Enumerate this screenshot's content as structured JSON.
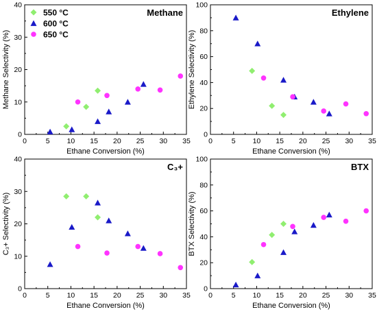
{
  "legend": [
    {
      "label": "550 °C",
      "color": "#90ee70",
      "marker": "diamond"
    },
    {
      "label": "600 °C",
      "color": "#1a1ac8",
      "marker": "triangle"
    },
    {
      "label": "650 °C",
      "color": "#ff33ff",
      "marker": "circle"
    }
  ],
  "chart_data": [
    {
      "type": "scatter",
      "title": "Methane",
      "xlabel": "Ethane Conversion (%)",
      "ylabel": "Methane Selectivity (%)",
      "xlim": [
        0,
        35
      ],
      "ylim": [
        0,
        40
      ],
      "xticks": [
        0,
        5,
        10,
        15,
        20,
        25,
        30,
        35
      ],
      "yticks": [
        0,
        10,
        20,
        30,
        40
      ],
      "legend_position": "top-left",
      "series": [
        {
          "name": "550 °C",
          "points": [
            [
              9.0,
              2.5
            ],
            [
              13.3,
              8.5
            ],
            [
              15.8,
              13.5
            ]
          ]
        },
        {
          "name": "600 °C",
          "points": [
            [
              5.5,
              0.8
            ],
            [
              10.2,
              1.5
            ],
            [
              15.8,
              4.0
            ],
            [
              18.2,
              7.0
            ],
            [
              22.3,
              10.0
            ],
            [
              25.7,
              15.5
            ]
          ]
        },
        {
          "name": "650 °C",
          "points": [
            [
              11.5,
              10.0
            ],
            [
              17.8,
              12.0
            ],
            [
              24.5,
              14.0
            ],
            [
              29.3,
              13.7
            ],
            [
              33.7,
              18.0
            ]
          ]
        }
      ]
    },
    {
      "type": "scatter",
      "title": "Ethylene",
      "xlabel": "Ethane Conversion (%)",
      "ylabel": "Ethylene Selectivity (%)",
      "xlim": [
        0,
        35
      ],
      "ylim": [
        0,
        100
      ],
      "xticks": [
        0,
        5,
        10,
        15,
        20,
        25,
        30,
        35
      ],
      "yticks": [
        0,
        20,
        40,
        60,
        80,
        100
      ],
      "series": [
        {
          "name": "550 °C",
          "points": [
            [
              9.0,
              49.0
            ],
            [
              13.3,
              22.0
            ],
            [
              15.8,
              15.0
            ]
          ]
        },
        {
          "name": "600 °C",
          "points": [
            [
              5.5,
              90.0
            ],
            [
              10.2,
              70.0
            ],
            [
              15.8,
              42.0
            ],
            [
              18.2,
              29.0
            ],
            [
              22.3,
              25.0
            ],
            [
              25.7,
              16.0
            ]
          ]
        },
        {
          "name": "650 °C",
          "points": [
            [
              11.5,
              43.5
            ],
            [
              17.8,
              29.0
            ],
            [
              24.5,
              18.0
            ],
            [
              29.3,
              23.5
            ],
            [
              33.7,
              16.0
            ]
          ]
        }
      ]
    },
    {
      "type": "scatter",
      "title": "C₃+",
      "xlabel": "Ethane Conversion (%)",
      "ylabel": "C₃+ Selectivity (%)",
      "xlim": [
        0,
        35
      ],
      "ylim": [
        0,
        40
      ],
      "xticks": [
        0,
        5,
        10,
        15,
        20,
        25,
        30,
        35
      ],
      "yticks": [
        0,
        10,
        20,
        30,
        40
      ],
      "series": [
        {
          "name": "550 °C",
          "points": [
            [
              9.0,
              28.5
            ],
            [
              13.3,
              28.5
            ],
            [
              15.8,
              22.0
            ]
          ]
        },
        {
          "name": "600 °C",
          "points": [
            [
              5.5,
              7.5
            ],
            [
              10.2,
              19.0
            ],
            [
              15.8,
              26.5
            ],
            [
              18.2,
              21.0
            ],
            [
              22.3,
              17.0
            ],
            [
              25.7,
              12.5
            ]
          ]
        },
        {
          "name": "650 °C",
          "points": [
            [
              11.5,
              13.0
            ],
            [
              17.8,
              11.0
            ],
            [
              24.5,
              13.0
            ],
            [
              29.3,
              10.8
            ],
            [
              33.7,
              6.5
            ]
          ]
        }
      ]
    },
    {
      "type": "scatter",
      "title": "BTX",
      "xlabel": "Ethane Conversion (%)",
      "ylabel": "BTX Selectivity (%)",
      "xlim": [
        0,
        35
      ],
      "ylim": [
        0,
        100
      ],
      "xticks": [
        0,
        5,
        10,
        15,
        20,
        25,
        30,
        35
      ],
      "yticks": [
        0,
        20,
        40,
        60,
        80,
        100
      ],
      "series": [
        {
          "name": "550 °C",
          "points": [
            [
              9.0,
              20.5
            ],
            [
              13.3,
              41.5
            ],
            [
              15.8,
              50.0
            ]
          ]
        },
        {
          "name": "600 °C",
          "points": [
            [
              5.5,
              3.0
            ],
            [
              10.2,
              10.0
            ],
            [
              15.8,
              28.0
            ],
            [
              18.2,
              44.0
            ],
            [
              22.3,
              49.0
            ],
            [
              25.7,
              57.0
            ]
          ]
        },
        {
          "name": "650 °C",
          "points": [
            [
              11.5,
              34.0
            ],
            [
              17.8,
              48.0
            ],
            [
              24.5,
              55.0
            ],
            [
              29.3,
              52.0
            ],
            [
              33.7,
              60.0
            ]
          ]
        }
      ]
    }
  ]
}
